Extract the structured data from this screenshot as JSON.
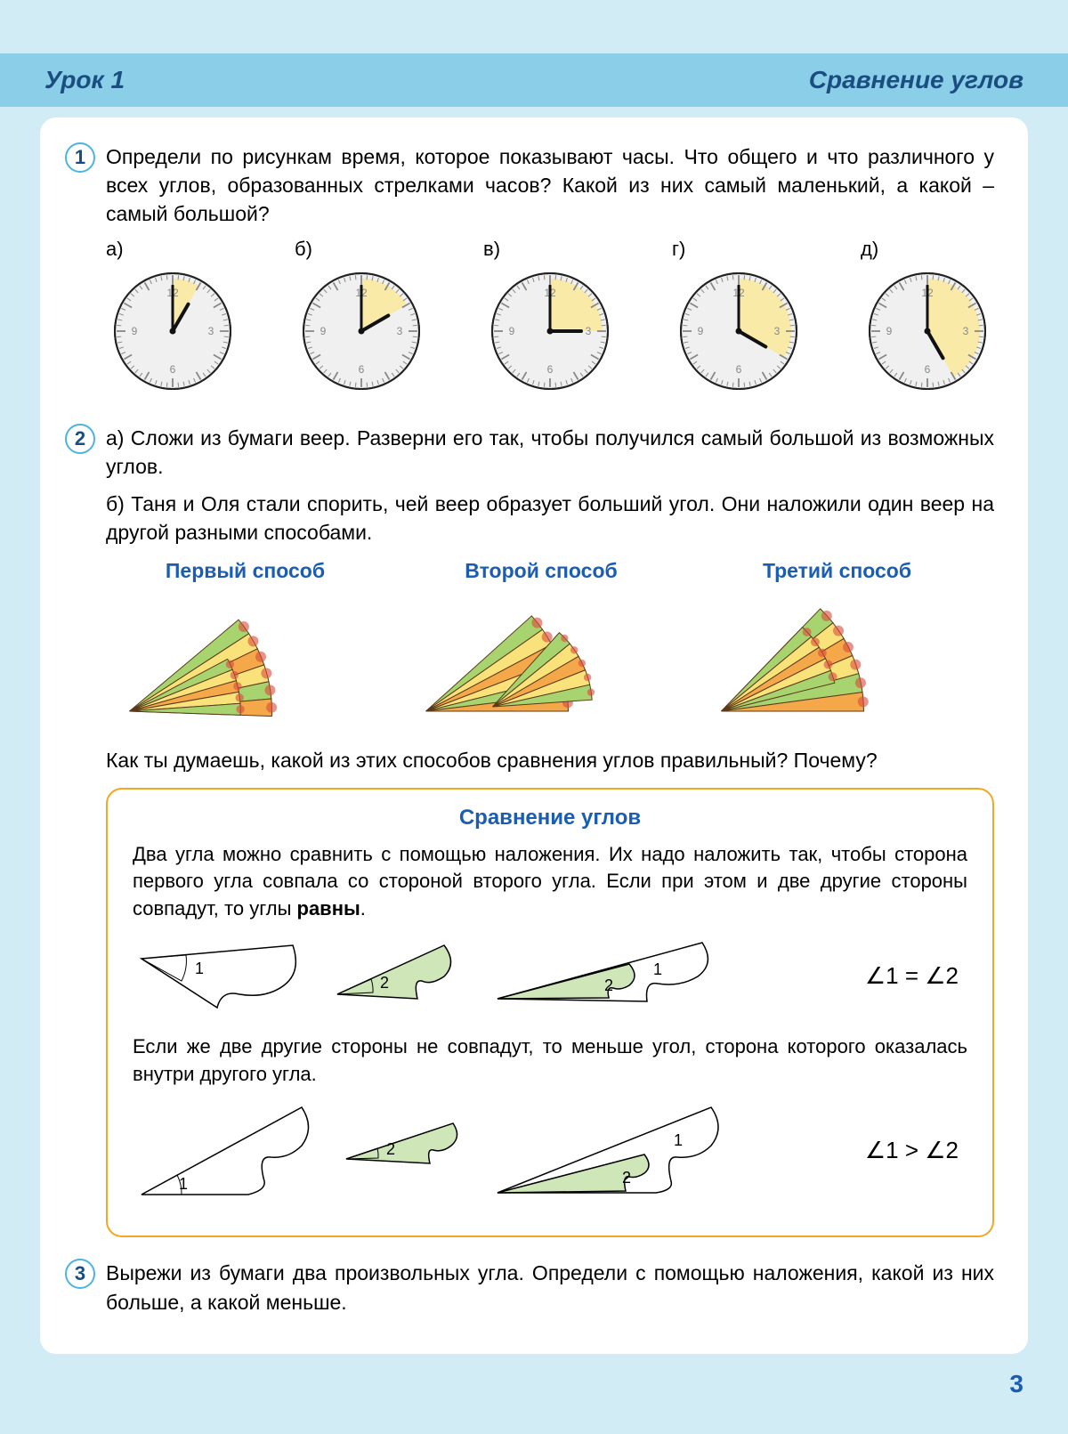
{
  "header": {
    "left": "Урок 1",
    "right": "Сравнение углов"
  },
  "task1": {
    "num": "1",
    "text": "Определи по рисункам время, которое показывают часы. Что общего и что различного у всех углов, образованных стрелками часов? Какой из них самый маленький, а какой – самый большой?",
    "clocks": [
      {
        "label": "а)",
        "hour_angle": -60,
        "minute_angle": 0,
        "sector": [
          0,
          30
        ]
      },
      {
        "label": "б)",
        "hour_angle": -30,
        "minute_angle": 0,
        "sector": [
          0,
          60
        ]
      },
      {
        "label": "в)",
        "hour_angle": 0,
        "minute_angle": 0,
        "sector": [
          0,
          90
        ]
      },
      {
        "label": "г)",
        "hour_angle": 30,
        "minute_angle": 0,
        "sector": [
          0,
          120
        ]
      },
      {
        "label": "д)",
        "hour_angle": 60,
        "minute_angle": 0,
        "sector": [
          0,
          150
        ]
      }
    ],
    "clock_style": {
      "face_fill": "#f0f0f0",
      "sector_fill": "#f9eaa8",
      "border": "#222",
      "tick": "#888",
      "hand": "#111",
      "num_color": "#888"
    }
  },
  "task2": {
    "num": "2",
    "text_a": "а) Сложи из бумаги веер. Разверни его так, чтобы получился самый большой из возможных углов.",
    "text_b": "б) Таня и Оля стали спорить, чей веер образует больший угол. Они наложили один веер на другой разными способами.",
    "methods": [
      {
        "title": "Первый способ"
      },
      {
        "title": "Второй способ"
      },
      {
        "title": "Третий способ"
      }
    ],
    "question": "Как ты думаешь, какой из этих способов сравнения углов правильный? Почему?",
    "fan_colors": {
      "green": "#a8d46f",
      "orange": "#f5a84a",
      "yellow": "#f9e27a",
      "red": "#d94b3a",
      "outline": "#5a3a1a"
    }
  },
  "rule": {
    "title": "Сравнение углов",
    "para1": "Два угла можно сравнить с помощью наложения. Их надо наложить так, чтобы сторона первого угла совпала со стороной второго угла. Если при этом и две другие стороны совпадут, то углы ",
    "para1_bold": "равны",
    "formula1": "∠1 = ∠2",
    "para2": "Если же две другие стороны не совпадут, то меньше угол, сторона которого оказалась внутри другого угла.",
    "formula2": "∠1 > ∠2",
    "angle_style": {
      "fill_green": "#cfe6b8",
      "stroke": "#000"
    }
  },
  "task3": {
    "num": "3",
    "text": "Вырежи из бумаги два произвольных угла. Определи с помощью наложения, какой из них больше, а какой меньше."
  },
  "page_number": "3"
}
